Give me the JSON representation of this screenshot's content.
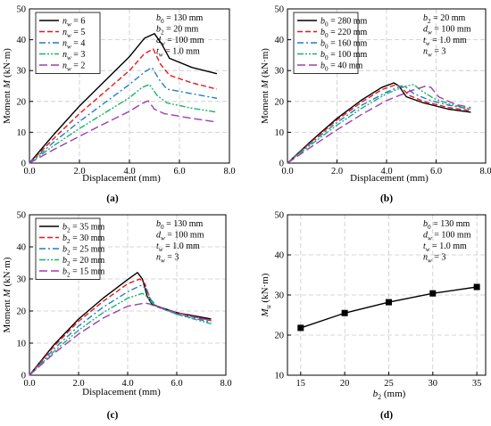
{
  "colors": {
    "black": "#000000",
    "red": "#e8141b",
    "blue": "#1f7fc4",
    "green": "#19b36b",
    "purple": "#a03bb5",
    "grid": "#c8c8c8"
  },
  "chart_data": [
    {
      "id": "a",
      "type": "line",
      "panel_label": "(a)",
      "xlabel": "Displacement (mm)",
      "ylabel": "Moment M (kN·m)",
      "xlim": [
        0,
        8
      ],
      "ylim": [
        0,
        50
      ],
      "xticks": [
        "0.0",
        "2.0",
        "4.0",
        "6.0",
        "8.0"
      ],
      "yticks": [
        "0",
        "10",
        "20",
        "30",
        "40",
        "50"
      ],
      "grid": true,
      "legend_position": "top-left",
      "params": [
        "b0 = 130 mm",
        "b2 = 20 mm",
        "dw = 100 mm",
        "tw = 1.0 mm"
      ],
      "series": [
        {
          "name": "nw = 6",
          "color": "black",
          "dash": "solid",
          "x": [
            0,
            1.0,
            2.0,
            3.0,
            4.0,
            4.6,
            5.0,
            5.3,
            5.6,
            6.5,
            7.5
          ],
          "y": [
            0,
            9.5,
            18.5,
            26.5,
            34.5,
            40.5,
            42,
            38.5,
            34,
            31,
            29
          ]
        },
        {
          "name": "nw = 5",
          "color": "red",
          "dash": "dash",
          "x": [
            0,
            1.0,
            2.0,
            3.0,
            4.0,
            4.6,
            4.95,
            5.25,
            5.6,
            6.5,
            7.5
          ],
          "y": [
            0,
            8.2,
            16,
            23,
            30,
            35.5,
            37,
            32,
            28.5,
            26,
            24
          ]
        },
        {
          "name": "nw = 4",
          "color": "blue",
          "dash": "dashdot",
          "x": [
            0,
            1.0,
            2.0,
            3.0,
            4.0,
            4.6,
            4.9,
            5.2,
            5.5,
            6.5,
            7.5
          ],
          "y": [
            0,
            7,
            13.5,
            19.5,
            25.5,
            29.5,
            31,
            27,
            24,
            22.5,
            21
          ]
        },
        {
          "name": "nw = 3",
          "color": "green",
          "dash": "dashdotdot",
          "x": [
            0,
            1.0,
            2.0,
            3.0,
            4.0,
            4.5,
            4.8,
            5.1,
            5.5,
            6.5,
            7.5
          ],
          "y": [
            0,
            5.8,
            11.2,
            16.2,
            21.2,
            24.5,
            25.5,
            22,
            19.5,
            17.8,
            16.5
          ]
        },
        {
          "name": "nw = 2",
          "color": "purple",
          "dash": "longdash",
          "x": [
            0,
            1.0,
            2.0,
            3.0,
            4.0,
            4.5,
            4.75,
            5.0,
            5.4,
            6.5,
            7.5
          ],
          "y": [
            0,
            4.5,
            8.7,
            12.8,
            16.8,
            19.3,
            20.2,
            17.5,
            16,
            14.5,
            13.3
          ]
        }
      ]
    },
    {
      "id": "b",
      "type": "line",
      "panel_label": "(b)",
      "xlabel": "Displacement (mm)",
      "ylabel": "Moment M (kN·m)",
      "xlim": [
        0,
        8
      ],
      "ylim": [
        0,
        50
      ],
      "xticks": [
        "0.0",
        "2.0",
        "4.0",
        "6.0",
        "8.0"
      ],
      "yticks": [
        "0",
        "10",
        "20",
        "30",
        "40",
        "50"
      ],
      "grid": true,
      "legend_position": "top-left",
      "params": [
        "b2 = 20 mm",
        "dw = 100 mm",
        "tw = 1.0 mm",
        "nw = 3"
      ],
      "series": [
        {
          "name": "b0 = 280 mm",
          "color": "black",
          "dash": "solid",
          "x": [
            0,
            1.0,
            2.0,
            3.0,
            3.8,
            4.3,
            4.5,
            4.8,
            5.5,
            6.5,
            7.4
          ],
          "y": [
            0,
            7.5,
            14.5,
            20.5,
            24.5,
            26,
            25,
            21.5,
            19.5,
            17.5,
            16.5
          ]
        },
        {
          "name": "b0 = 220 mm",
          "color": "red",
          "dash": "dash",
          "x": [
            0,
            1.0,
            2.0,
            3.0,
            3.8,
            4.4,
            4.6,
            4.9,
            5.5,
            6.5,
            7.4
          ],
          "y": [
            0,
            7.2,
            14,
            19.8,
            23.8,
            25.5,
            24.5,
            22,
            20,
            18,
            17
          ]
        },
        {
          "name": "b0 = 160 mm",
          "color": "blue",
          "dash": "dashdot",
          "x": [
            0,
            1.0,
            2.0,
            3.0,
            4.0,
            4.6,
            4.8,
            5.1,
            5.7,
            6.5,
            7.4
          ],
          "y": [
            0,
            6.8,
            13.2,
            18.8,
            23,
            25,
            24.5,
            22.5,
            20.5,
            18.8,
            17.5
          ]
        },
        {
          "name": "b0 = 100 mm",
          "color": "green",
          "dash": "dashdotdot",
          "x": [
            0,
            1.0,
            2.0,
            3.0,
            4.0,
            4.8,
            5.1,
            5.4,
            5.9,
            6.6,
            7.4
          ],
          "y": [
            0,
            6.3,
            12.3,
            17.8,
            22.5,
            25,
            25.5,
            23.5,
            21,
            19,
            17.5
          ]
        },
        {
          "name": "b0 = 40 mm",
          "color": "purple",
          "dash": "longdash",
          "x": [
            0,
            1.0,
            2.0,
            3.0,
            4.0,
            5.0,
            5.6,
            5.8,
            6.1,
            6.8,
            7.4
          ],
          "y": [
            0,
            5.5,
            10.8,
            15.8,
            20.3,
            23.5,
            25,
            24.5,
            21.5,
            19,
            18
          ]
        }
      ]
    },
    {
      "id": "c",
      "type": "line",
      "panel_label": "(c)",
      "xlabel": "Displacement (mm)",
      "ylabel": "Moment M (kN·m)",
      "xlim": [
        0,
        8
      ],
      "ylim": [
        0,
        50
      ],
      "xticks": [
        "0.0",
        "2.0",
        "4.0",
        "6.0",
        "8.0"
      ],
      "yticks": [
        "0",
        "10",
        "20",
        "30",
        "40",
        "50"
      ],
      "grid": true,
      "legend_position": "top-left",
      "params": [
        "b0 = 130 mm",
        "dw = 100 mm",
        "tw = 1.0 mm",
        "nw = 3"
      ],
      "series": [
        {
          "name": "b2 = 35 mm",
          "color": "black",
          "dash": "solid",
          "x": [
            0,
            1.0,
            2.0,
            3.0,
            4.0,
            4.4,
            4.6,
            4.8,
            5.0,
            6.0,
            7.4
          ],
          "y": [
            0,
            9.5,
            17.5,
            24,
            29.8,
            32,
            30,
            24.5,
            22,
            19.5,
            17.5
          ]
        },
        {
          "name": "b2 = 30 mm",
          "color": "red",
          "dash": "dash",
          "x": [
            0,
            1.0,
            2.0,
            3.0,
            4.0,
            4.5,
            4.7,
            4.9,
            5.1,
            6.0,
            7.4
          ],
          "y": [
            0,
            9,
            16.8,
            23,
            28.5,
            30,
            28.5,
            24,
            21.8,
            19.2,
            17
          ]
        },
        {
          "name": "b2 = 25 mm",
          "color": "blue",
          "dash": "dashdot",
          "x": [
            0,
            1.0,
            2.0,
            3.0,
            4.0,
            4.55,
            4.75,
            4.95,
            5.2,
            6.0,
            7.4
          ],
          "y": [
            0,
            8.2,
            15.3,
            21.2,
            26,
            28,
            27,
            23.5,
            21.5,
            19,
            16.5
          ]
        },
        {
          "name": "b2 = 20 mm",
          "color": "green",
          "dash": "dashdotdot",
          "x": [
            0,
            1.0,
            2.0,
            3.0,
            4.0,
            4.6,
            4.8,
            5.0,
            5.3,
            6.0,
            7.4
          ],
          "y": [
            0,
            7.4,
            14,
            19.5,
            24,
            25.5,
            24.5,
            22.5,
            21,
            19,
            16
          ]
        },
        {
          "name": "b2 = 15 mm",
          "color": "purple",
          "dash": "longdash",
          "x": [
            0,
            1.0,
            2.0,
            3.0,
            4.0,
            4.7,
            4.9,
            5.1,
            5.4,
            6.0,
            7.4
          ],
          "y": [
            0,
            6.8,
            12.8,
            17.8,
            21.5,
            22.5,
            22.2,
            21.5,
            20.8,
            19.5,
            17
          ]
        }
      ]
    },
    {
      "id": "d",
      "type": "line",
      "panel_label": "(d)",
      "xlabel": "b2 (mm)",
      "ylabel": "Mu (kN·m)",
      "xlim": [
        13.5,
        36
      ],
      "ylim": [
        10,
        50
      ],
      "xticks": [
        "15",
        "20",
        "25",
        "30",
        "35"
      ],
      "yticks": [
        "10",
        "20",
        "30",
        "40",
        "50"
      ],
      "grid": true,
      "params": [
        "b0 = 130 mm",
        "dw = 100 mm",
        "tw = 1.0 mm",
        "nw = 3"
      ],
      "series": [
        {
          "name": "",
          "color": "black",
          "marker": "square",
          "x": [
            15,
            20,
            25,
            30,
            35
          ],
          "y": [
            21.8,
            25.5,
            28.2,
            30.4,
            32
          ]
        }
      ]
    }
  ]
}
